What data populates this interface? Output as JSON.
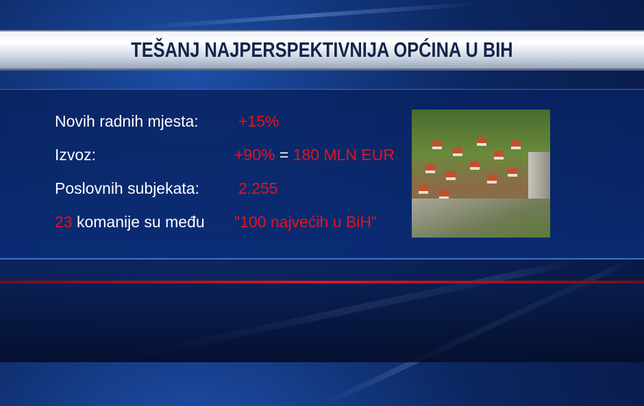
{
  "title": "TEŠANJ NAJPERSPEKTIVNIJA OPĆINA U BIH",
  "rows": [
    {
      "label": "Novih radnih mjesta:",
      "value": "+15%"
    },
    {
      "label": "Izvoz:",
      "value": "+90%",
      "equals": "=",
      "value2": "180 MLN EUR"
    },
    {
      "label": "Poslovnih subjekata:",
      "value": "2.255"
    },
    {
      "prefix": "23",
      "label": "komanije su među",
      "value": "\"100 najvećih u BiH\""
    }
  ],
  "photo": "aerial-town-fortress-photo",
  "colors": {
    "accent_red": "#e3141c",
    "title_text": "#13244a",
    "background": "#0c2660"
  }
}
